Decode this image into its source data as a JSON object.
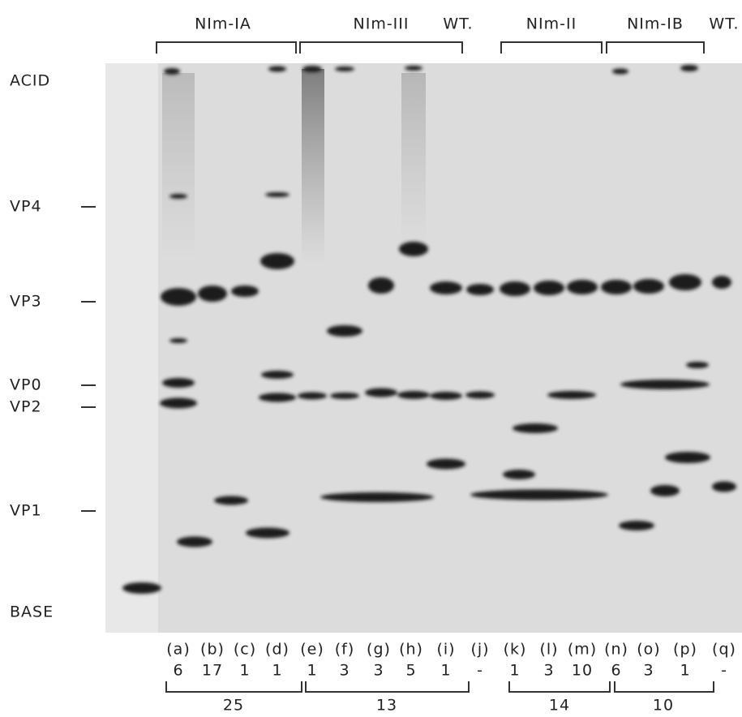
{
  "header": {
    "groups": [
      "NIm-IA",
      "NIm-III",
      "WT.",
      "NIm-II",
      "NIm-IB",
      "WT."
    ]
  },
  "markers": [
    "ACID",
    "VP4",
    "VP3",
    "VP0",
    "VP2",
    "VP1",
    "BASE"
  ],
  "lanes": {
    "labels": [
      "(a)",
      "(b)",
      "(c)",
      "(d)",
      "(e)",
      "(f)",
      "(g)",
      "(h)",
      "(i)",
      "(j)",
      "(k)",
      "(l)",
      "(m)",
      "(n)",
      "(o)",
      "(p)",
      "(q)"
    ],
    "counts": [
      "6",
      "17",
      "1",
      "1",
      "1",
      "3",
      "3",
      "5",
      "1",
      "-",
      "1",
      "3",
      "10",
      "6",
      "3",
      "1",
      "-"
    ]
  },
  "totals": [
    "25",
    "13",
    "14",
    "10"
  ]
}
